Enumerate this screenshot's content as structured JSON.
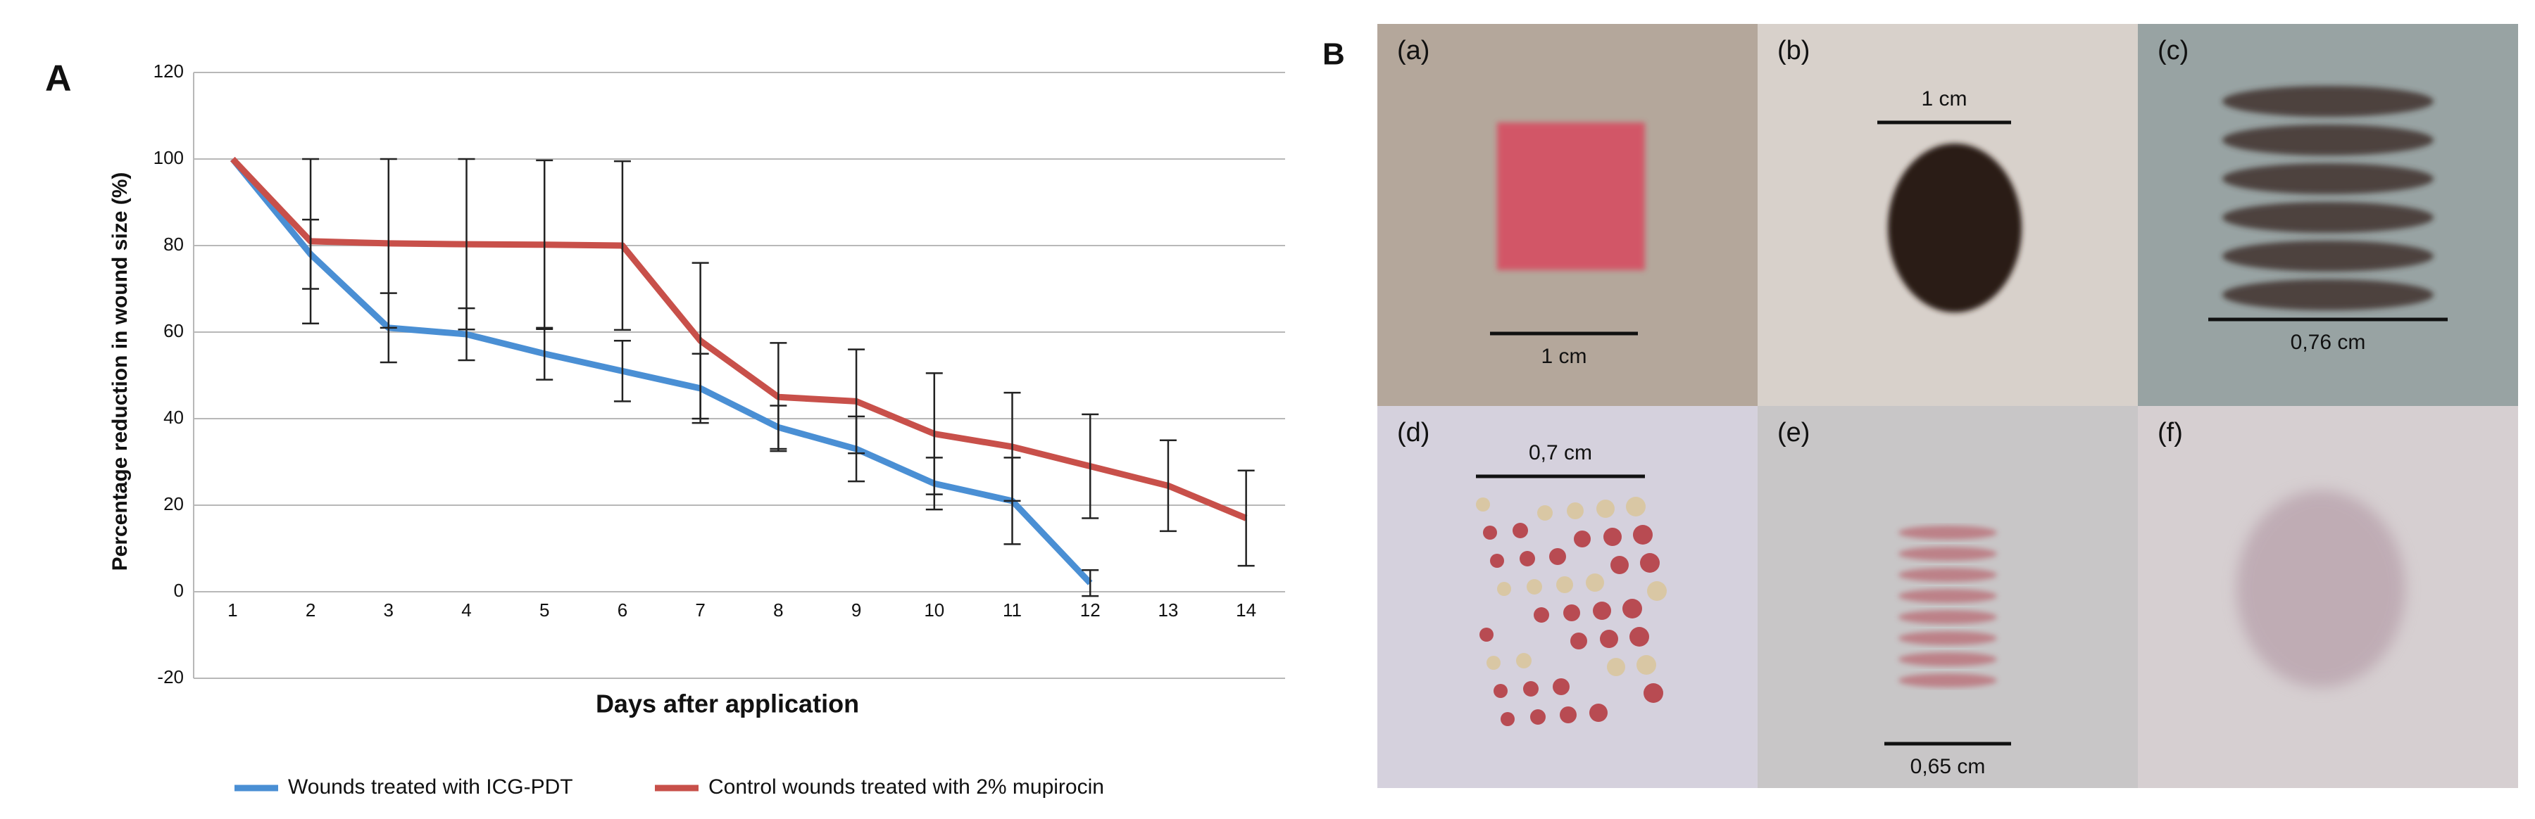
{
  "chart_data": {
    "type": "line",
    "y_label": "Percentage reduction in wound size (%)",
    "x_label": "Days after application",
    "categories": [
      "1",
      "2",
      "3",
      "4",
      "5",
      "6",
      "7",
      "8",
      "9",
      "10",
      "11",
      "12",
      "13",
      "14"
    ],
    "ylim": [
      -20,
      120
    ],
    "yticks": [
      -20,
      0,
      20,
      40,
      60,
      80,
      100,
      120
    ],
    "grid": true,
    "series": [
      {
        "name": "Wounds treated with ICG-PDT",
        "color": "#4a8fd4",
        "values": [
          100,
          78,
          61,
          59.5,
          55,
          51,
          47,
          38,
          33,
          25,
          21,
          2,
          null,
          null
        ],
        "errors": [
          0,
          8,
          8,
          6,
          6,
          7,
          8,
          5,
          7.5,
          6,
          10,
          3,
          null,
          null
        ]
      },
      {
        "name": "Control wounds treated with 2% mupirocin",
        "color": "#c8504a",
        "values": [
          100,
          81,
          80.5,
          80.3,
          80.2,
          80,
          58,
          45,
          44,
          36.5,
          33.5,
          29,
          24.5,
          17
        ],
        "errors": [
          0,
          19,
          19.5,
          19.7,
          19.5,
          19.5,
          18,
          12.5,
          12,
          14,
          12.5,
          12,
          10.5,
          11
        ]
      }
    ]
  },
  "panel_labels": [
    "A",
    "B"
  ],
  "photos": [
    {
      "label": "(a)",
      "scale": "1 cm"
    },
    {
      "label": "(b)",
      "scale": "1 cm"
    },
    {
      "label": "(c)",
      "scale": "0,76 cm"
    },
    {
      "label": "(d)",
      "scale": "0,7 cm"
    },
    {
      "label": "(e)",
      "scale": "0,65 cm"
    },
    {
      "label": "(f)"
    }
  ]
}
